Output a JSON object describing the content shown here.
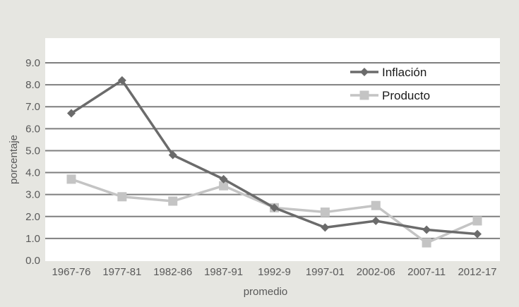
{
  "chart_data": {
    "type": "line",
    "title": "",
    "xlabel": "promedio",
    "ylabel": "porcentaje",
    "ylim": [
      0,
      9
    ],
    "yticks": [
      "0.0",
      "1.0",
      "2.0",
      "3.0",
      "4.0",
      "5.0",
      "6.0",
      "7.0",
      "8.0",
      "9.0"
    ],
    "grid": true,
    "legend_position": "top-right",
    "categories": [
      "1967-76",
      "1977-81",
      "1982-86",
      "1987-91",
      "1992-9",
      "1997-01",
      "2002-06",
      "2007-11",
      "2012-17"
    ],
    "series": [
      {
        "name": "Inflación",
        "color": "#6b6b6b",
        "marker": "diamond",
        "values": [
          6.7,
          8.2,
          4.8,
          3.7,
          2.4,
          1.5,
          1.8,
          1.4,
          1.2
        ]
      },
      {
        "name": "Producto",
        "color": "#c4c4c4",
        "marker": "square",
        "values": [
          3.7,
          2.9,
          2.7,
          3.4,
          2.4,
          2.2,
          2.5,
          0.8,
          1.8
        ]
      }
    ]
  }
}
